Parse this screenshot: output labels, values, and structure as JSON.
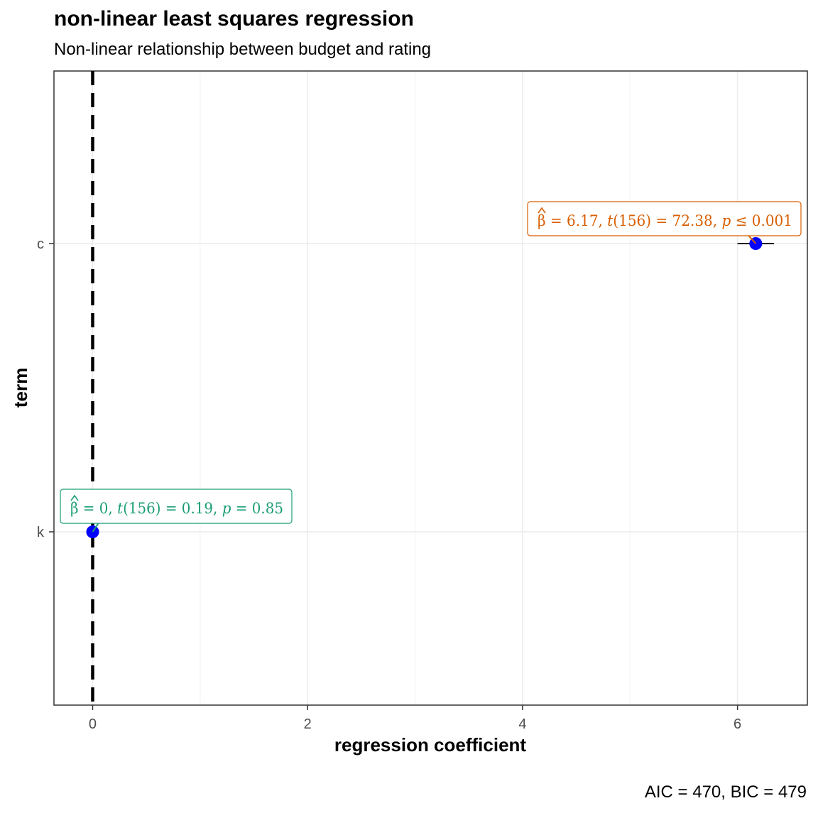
{
  "chart_data": {
    "type": "scatter",
    "title": "non-linear least squares regression",
    "subtitle": "Non-linear relationship between budget and rating",
    "xlabel": "regression coefficient",
    "ylabel": "term",
    "caption": "AIC = 470, BIC = 479",
    "xlim": [
      -0.36,
      6.65
    ],
    "x_ticks": [
      0,
      2,
      4,
      6
    ],
    "categories": [
      "c",
      "k"
    ],
    "grid": true,
    "reference_line": {
      "x": 0,
      "style": "dashed",
      "color": "#000000"
    },
    "points": [
      {
        "term": "c",
        "estimate": 6.17,
        "conf_low": 6.0,
        "conf_high": 6.34,
        "color": "#0000ff",
        "label_color": "#d95f02",
        "label": {
          "beta": "6.17",
          "t": "t(156) = 72.38",
          "p": "p ≤ 0.001"
        }
      },
      {
        "term": "k",
        "estimate": 0.0,
        "conf_low": 0.0,
        "conf_high": 0.0,
        "color": "#0000ff",
        "label_color": "#1b9e77",
        "label": {
          "beta": "0",
          "t": "t(156) = 0.19",
          "p": "p = 0.85"
        }
      }
    ]
  }
}
